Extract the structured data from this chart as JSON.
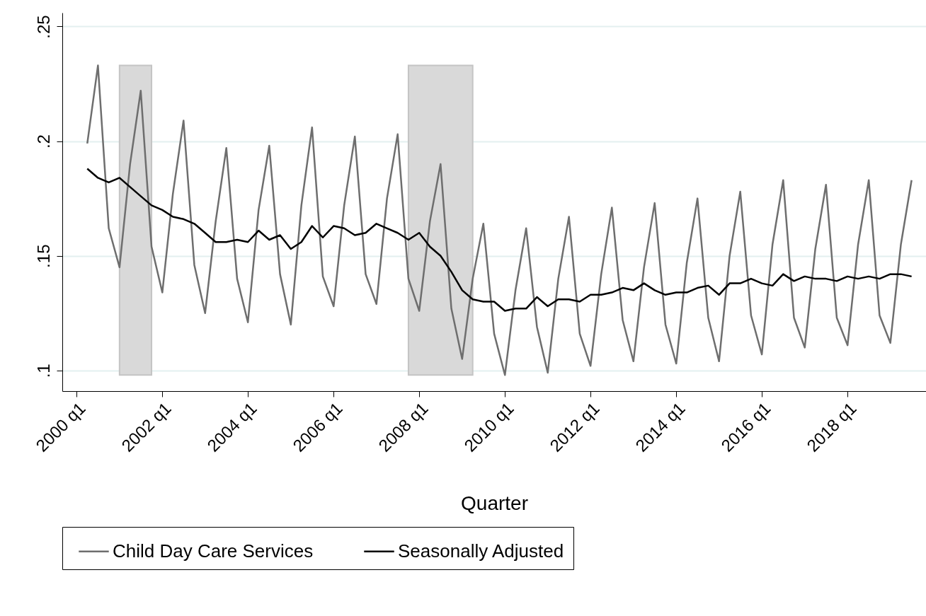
{
  "chart_data": {
    "type": "line",
    "xlabel": "Quarter",
    "x": [
      "2000-04",
      "2000-07",
      "2000-10",
      "2001-01",
      "2001-04",
      "2001-07",
      "2001-10",
      "2002-01",
      "2002-04",
      "2002-07",
      "2002-10",
      "2003-01",
      "2003-04",
      "2003-07",
      "2003-10",
      "2004-01",
      "2004-04",
      "2004-07",
      "2004-10",
      "2005-01",
      "2005-04",
      "2005-07",
      "2005-10",
      "2006-01",
      "2006-04",
      "2006-07",
      "2006-10",
      "2007-01",
      "2007-04",
      "2007-07",
      "2007-10",
      "2008-01",
      "2008-04",
      "2008-07",
      "2008-10",
      "2009-01",
      "2009-04",
      "2009-07",
      "2009-10",
      "2010-01",
      "2010-04",
      "2010-07",
      "2010-10",
      "2011-01",
      "2011-04",
      "2011-07",
      "2011-10",
      "2012-01",
      "2012-04",
      "2012-07",
      "2012-10",
      "2013-01",
      "2013-04",
      "2013-07",
      "2013-10",
      "2014-01",
      "2014-04",
      "2014-07",
      "2014-10",
      "2015-01",
      "2015-04",
      "2015-07",
      "2015-10",
      "2016-01",
      "2016-04",
      "2016-07",
      "2016-10",
      "2017-01",
      "2017-04",
      "2017-07",
      "2017-10",
      "2018-01",
      "2018-04",
      "2018-07",
      "2018-10",
      "2019-01",
      "2019-04",
      "2019-07"
    ],
    "series": [
      {
        "name": "Child Day Care Services",
        "color": "#6e6e6e",
        "values": [
          0.199,
          0.233,
          0.162,
          0.145,
          0.19,
          0.222,
          0.154,
          0.134,
          0.177,
          0.209,
          0.146,
          0.125,
          0.165,
          0.197,
          0.14,
          0.121,
          0.17,
          0.198,
          0.142,
          0.12,
          0.172,
          0.206,
          0.141,
          0.128,
          0.172,
          0.202,
          0.142,
          0.129,
          0.175,
          0.203,
          0.14,
          0.126,
          0.165,
          0.19,
          0.127,
          0.105,
          0.14,
          0.164,
          0.116,
          0.098,
          0.135,
          0.162,
          0.119,
          0.099,
          0.14,
          0.167,
          0.116,
          0.102,
          0.142,
          0.171,
          0.122,
          0.104,
          0.145,
          0.173,
          0.12,
          0.103,
          0.147,
          0.175,
          0.123,
          0.104,
          0.15,
          0.178,
          0.124,
          0.107,
          0.155,
          0.183,
          0.123,
          0.11,
          0.153,
          0.181,
          0.123,
          0.111,
          0.155,
          0.183,
          0.124,
          0.112,
          0.155,
          0.183
        ]
      },
      {
        "name": "Seasonally Adjusted",
        "color": "#000000",
        "values": [
          0.188,
          0.184,
          0.182,
          0.184,
          0.18,
          0.176,
          0.172,
          0.17,
          0.167,
          0.166,
          0.164,
          0.16,
          0.156,
          0.156,
          0.157,
          0.156,
          0.161,
          0.157,
          0.159,
          0.153,
          0.156,
          0.163,
          0.158,
          0.163,
          0.162,
          0.159,
          0.16,
          0.164,
          0.162,
          0.16,
          0.157,
          0.16,
          0.154,
          0.15,
          0.143,
          0.135,
          0.131,
          0.13,
          0.13,
          0.126,
          0.127,
          0.127,
          0.132,
          0.128,
          0.131,
          0.131,
          0.13,
          0.133,
          0.133,
          0.134,
          0.136,
          0.135,
          0.138,
          0.135,
          0.133,
          0.134,
          0.134,
          0.136,
          0.137,
          0.133,
          0.138,
          0.138,
          0.14,
          0.138,
          0.137,
          0.142,
          0.139,
          0.141,
          0.14,
          0.14,
          0.139,
          0.141,
          0.14,
          0.141,
          0.14,
          0.142,
          0.142,
          0.141
        ]
      }
    ],
    "xlim": [
      "1999-09",
      "2019-11"
    ],
    "xticks": [
      {
        "value": "2000-01",
        "label": "2000 q1"
      },
      {
        "value": "2002-01",
        "label": "2002 q1"
      },
      {
        "value": "2004-01",
        "label": "2004 q1"
      },
      {
        "value": "2006-01",
        "label": "2006 q1"
      },
      {
        "value": "2008-01",
        "label": "2008 q1"
      },
      {
        "value": "2010-01",
        "label": "2010 q1"
      },
      {
        "value": "2012-01",
        "label": "2012 q1"
      },
      {
        "value": "2014-01",
        "label": "2014 q1"
      },
      {
        "value": "2016-01",
        "label": "2016 q1"
      },
      {
        "value": "2018-01",
        "label": "2018 q1"
      }
    ],
    "ylim": [
      0.091,
      0.256
    ],
    "yticks": [
      {
        "value": 0.1,
        "label": ".1"
      },
      {
        "value": 0.15,
        "label": ".15"
      },
      {
        "value": 0.2,
        "label": ".2"
      },
      {
        "value": 0.25,
        "label": ".25"
      }
    ],
    "bands": [
      {
        "axis": "x",
        "from": "2001-01",
        "to": "2001-10",
        "color": "#d9d9d9"
      },
      {
        "axis": "x",
        "from": "2007-10",
        "to": "2009-04",
        "color": "#d9d9d9"
      }
    ],
    "grid": "y",
    "legend": "bottom",
    "line_style": "solid"
  }
}
